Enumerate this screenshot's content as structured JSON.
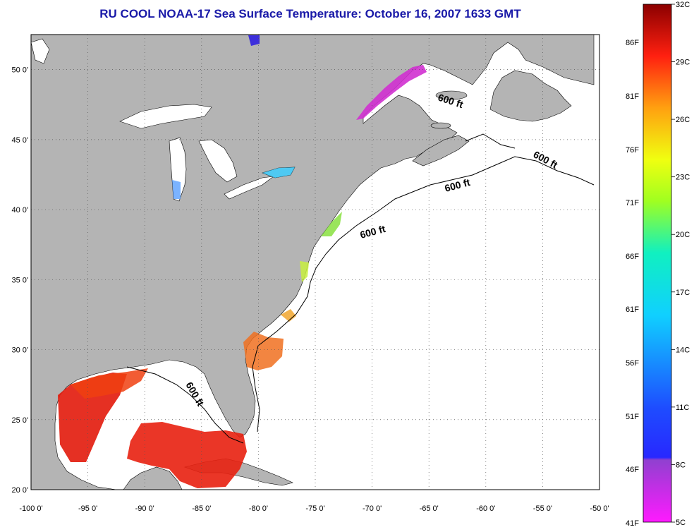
{
  "title": "RU COOL  NOAA-17  Sea Surface Temperature:  October 16, 2007 1633 GMT",
  "title_color": "#1a1aa8",
  "map": {
    "lon_range": [
      -100,
      -50
    ],
    "lat_range": [
      20,
      52.5
    ],
    "land_color": "#b4b4b4",
    "ocean_color": "#ffffff",
    "grid": "dotted",
    "x_ticks": [
      "-100 0'",
      "-95 0'",
      "-90 0'",
      "-85 0'",
      "-80 0'",
      "-75 0'",
      "-70 0'",
      "-65 0'",
      "-60 0'",
      "-55 0'",
      "-50 0'"
    ],
    "y_ticks": [
      "20 0'",
      "25 0'",
      "30 0'",
      "35 0'",
      "40 0'",
      "45 0'",
      "50 0'"
    ],
    "contour_labels": [
      "600 ft",
      "600 ft",
      "600 ft",
      "600 ft",
      "600 ft"
    ]
  },
  "colorbar": {
    "fahrenheit_labels": [
      "86F",
      "81F",
      "76F",
      "71F",
      "66F",
      "61F",
      "56F",
      "51F",
      "46F",
      "41F"
    ],
    "celsius_labels": [
      "32C",
      "29C",
      "26C",
      "23C",
      "20C",
      "17C",
      "14C",
      "11C",
      "8C",
      "5C"
    ]
  }
}
